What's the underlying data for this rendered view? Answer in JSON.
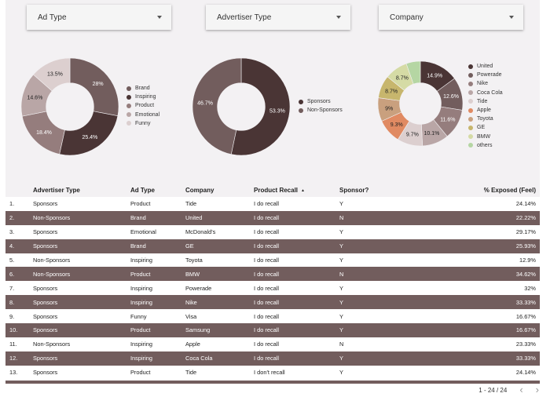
{
  "filters": [
    {
      "label": "Ad Type"
    },
    {
      "label": "Advertiser Type"
    },
    {
      "label": "Company"
    }
  ],
  "chart_data": [
    {
      "type": "pie",
      "donut": true,
      "categories": [
        "Brand",
        "Inspiring",
        "Product",
        "Emotional",
        "Funny"
      ],
      "values": [
        28,
        25.4,
        18.4,
        14.6,
        13.5
      ],
      "labels": [
        "28%",
        "25.4%",
        "18.4%",
        "14.6%",
        "13.5%"
      ],
      "colors": [
        "#725d5d",
        "#4a3535",
        "#957d7d",
        "#b9a6a6",
        "#dccfcf"
      ],
      "legend": "right"
    },
    {
      "type": "pie",
      "donut": true,
      "categories": [
        "Sponsors",
        "Non-Sponsors"
      ],
      "values": [
        53.3,
        46.7
      ],
      "labels": [
        "53.3%",
        "46.7%"
      ],
      "colors": [
        "#4a3535",
        "#725d5d"
      ],
      "legend": "right"
    },
    {
      "type": "pie",
      "donut": true,
      "categories": [
        "United",
        "Powerade",
        "Nike",
        "Coca Cola",
        "Tide",
        "Apple",
        "Toyota",
        "GE",
        "BMW",
        "others"
      ],
      "values": [
        14.9,
        12.6,
        11.6,
        10.1,
        9.7,
        9.3,
        9,
        8.7,
        8.7,
        5.4
      ],
      "labels": [
        "14.9%",
        "12.6%",
        "11.6%",
        "10.1%",
        "9.7%",
        "9.3%",
        "9%",
        "8.7%",
        "8.7%",
        ""
      ],
      "colors": [
        "#4a3535",
        "#725d5d",
        "#957d7d",
        "#b9a6a6",
        "#dccfcf",
        "#e08a62",
        "#c9a07e",
        "#c7b66d",
        "#d5dba5",
        "#b5d6a3"
      ],
      "legend": "right"
    }
  ],
  "table": {
    "headers": [
      "",
      "Advertiser Type",
      "Ad Type",
      "Company",
      "Product Recall",
      "Sponsor?",
      "% Exposed (Feel)"
    ],
    "sort_icon": "▲",
    "rows": [
      [
        "1.",
        "Sponsors",
        "Product",
        "Tide",
        "I do recall",
        "Y",
        "24.14%"
      ],
      [
        "2.",
        "Non-Sponsors",
        "Brand",
        "United",
        "I do recall",
        "N",
        "22.22%"
      ],
      [
        "3.",
        "Sponsors",
        "Emotional",
        "McDonald's",
        "I do recall",
        "Y",
        "29.17%"
      ],
      [
        "4.",
        "Sponsors",
        "Brand",
        "GE",
        "I do recall",
        "Y",
        "25.93%"
      ],
      [
        "5.",
        "Non-Sponsors",
        "Inspiring",
        "Toyota",
        "I do recall",
        "Y",
        "12.9%"
      ],
      [
        "6.",
        "Non-Sponsors",
        "Product",
        "BMW",
        "I do recall",
        "N",
        "34.62%"
      ],
      [
        "7.",
        "Sponsors",
        "Inspiring",
        "Powerade",
        "I do recall",
        "Y",
        "32%"
      ],
      [
        "8.",
        "Sponsors",
        "Inspiring",
        "Nike",
        "I do recall",
        "Y",
        "33.33%"
      ],
      [
        "9.",
        "Sponsors",
        "Funny",
        "Visa",
        "I do recall",
        "Y",
        "16.67%"
      ],
      [
        "10.",
        "Sponsors",
        "Product",
        "Samsung",
        "I do recall",
        "Y",
        "16.67%"
      ],
      [
        "11.",
        "Non-Sponsors",
        "Inspiring",
        "Apple",
        "I do recall",
        "N",
        "23.33%"
      ],
      [
        "12.",
        "Sponsors",
        "Inspiring",
        "Coca Cola",
        "I do recall",
        "Y",
        "33.33%"
      ],
      [
        "13.",
        "Sponsors",
        "Product",
        "Tide",
        "I don't recall",
        "Y",
        "24.14%"
      ]
    ]
  },
  "pagination": {
    "range": "1 - 24 / 24",
    "prev": "‹",
    "next": "›"
  }
}
